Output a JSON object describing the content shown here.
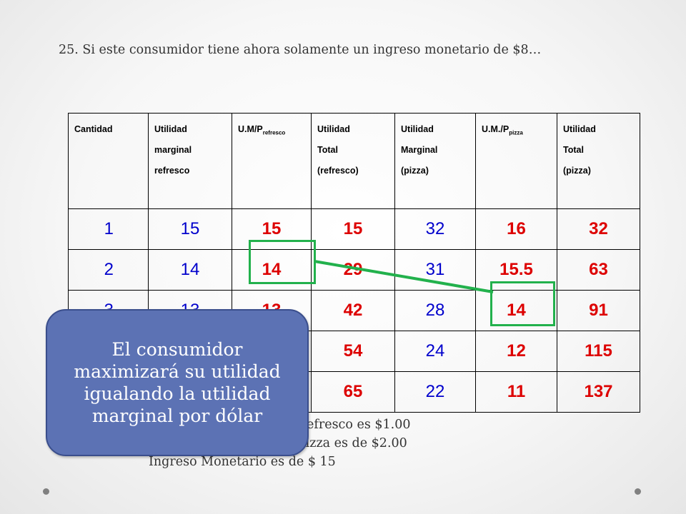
{
  "heading": "25. Si este consumidor tiene ahora solamente un ingreso monetario de $8…",
  "table": {
    "headers": [
      {
        "lines": [
          "Cantidad"
        ]
      },
      {
        "lines": [
          "Utilidad",
          "marginal",
          "refresco"
        ]
      },
      {
        "main": "U.M/P",
        "sub": "refresco"
      },
      {
        "lines": [
          "Utilidad",
          "Total",
          "(refresco)"
        ]
      },
      {
        "lines": [
          "Utilidad",
          "Marginal",
          "(pizza)"
        ]
      },
      {
        "main": "U.M./P",
        "sub": "pizza"
      },
      {
        "lines": [
          "Utilidad",
          "Total",
          "(pizza)"
        ]
      }
    ],
    "rows": [
      [
        "1",
        "15",
        "15",
        "15",
        "32",
        "16",
        "32"
      ],
      [
        "2",
        "14",
        "14",
        "29",
        "31",
        "15.5",
        "63"
      ],
      [
        "3",
        "13",
        "13",
        "42",
        "28",
        "14",
        "91"
      ],
      [
        "4",
        "",
        "",
        "54",
        "24",
        "12",
        "115"
      ],
      [
        "5",
        "",
        "",
        "65",
        "22",
        "11",
        "137"
      ]
    ]
  },
  "notes": [
    "Precio de la Unidad de Refresco es $1.00",
    "Precio de la Unidad de Pizza es de $2.00",
    "Ingreso Monetario es de $ 15"
  ],
  "callout": "El consumidor maximizará su utilidad igualando la utilidad marginal por dólar",
  "colors": {
    "number_blue": "#0000cc",
    "number_red": "#dd0000",
    "highlight_green": "#22b14c",
    "callout_fill": "#5c72b4"
  }
}
